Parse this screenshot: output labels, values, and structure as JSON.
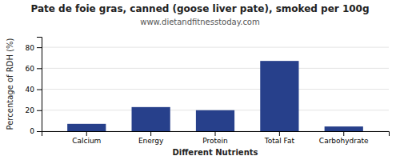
{
  "chart_data": {
    "type": "bar",
    "title": "Pate de foie gras, canned (goose liver pate), smoked per 100g",
    "subtitle": "www.dietandfitnesstoday.com",
    "categories": [
      "Calcium",
      "Energy",
      "Protein",
      "Total Fat",
      "Carbohydrate"
    ],
    "values": [
      7,
      23,
      20,
      67,
      4.5
    ],
    "color": "#27408B",
    "xlabel": "Different Nutrients",
    "ylabel": "Percentage of RDH (%)",
    "ylim": [
      0,
      90
    ],
    "yticks": [
      0,
      20,
      40,
      60,
      80
    ],
    "grid": true
  }
}
